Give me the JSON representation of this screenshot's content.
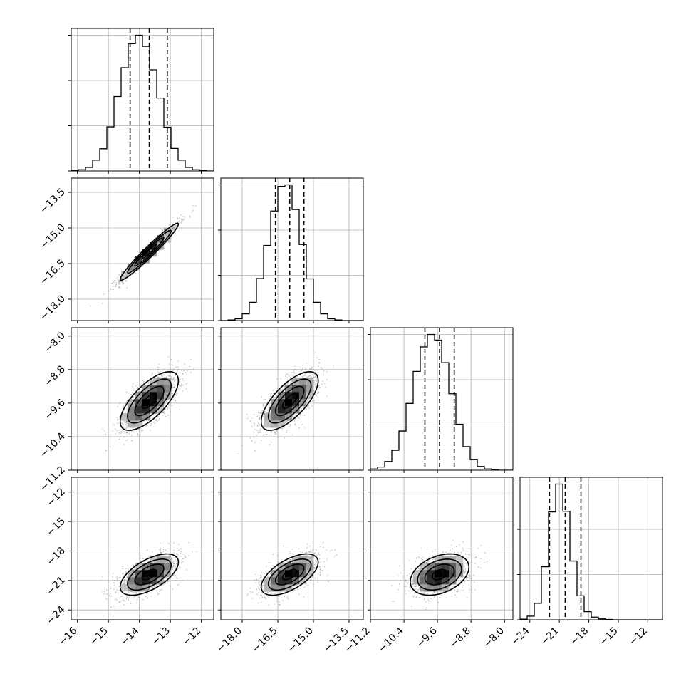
{
  "chart_data": {
    "type": "corner",
    "grid": true,
    "parameters": 4,
    "axes": [
      {
        "range": [
          -16.2,
          -11.6
        ],
        "ticks": [
          -16,
          -15,
          -14,
          -13,
          -12
        ],
        "tick_labels": [
          "−16",
          "−15",
          "−14",
          "−13",
          "−12"
        ]
      },
      {
        "range": [
          -18.9,
          -12.9
        ],
        "ticks": [
          -18.0,
          -16.5,
          -15.0,
          -13.5
        ],
        "tick_labels": [
          "−18.0",
          "−16.5",
          "−15.0",
          "−13.5"
        ]
      },
      {
        "range": [
          -11.2,
          -7.8
        ],
        "ticks": [
          -11.2,
          -10.4,
          -9.6,
          -8.8,
          -8.0
        ],
        "tick_labels": [
          "−11.2",
          "−10.4",
          "−9.6",
          "−8.8",
          "−8.0"
        ]
      },
      {
        "range": [
          -25.0,
          -10.5
        ],
        "ticks": [
          -24,
          -21,
          -18,
          -15,
          -12
        ],
        "tick_labels": [
          "−24",
          "−21",
          "−18",
          "−15",
          "−12"
        ]
      }
    ],
    "marginals": [
      {
        "param": 0,
        "quantiles": [
          -14.3,
          -13.68,
          -13.1
        ],
        "bin_edges": [
          -16.2,
          -15.97,
          -15.74,
          -15.51,
          -15.28,
          -15.05,
          -14.82,
          -14.59,
          -14.36,
          -14.13,
          -13.9,
          -13.67,
          -13.44,
          -13.21,
          -12.98,
          -12.75,
          -12.52,
          -12.29,
          -12.06,
          -11.83,
          -11.6
        ],
        "counts": [
          2,
          4,
          12,
          36,
          74,
          147,
          248,
          344,
          424,
          452,
          415,
          337,
          243,
          146,
          75,
          36,
          12,
          4,
          1,
          0
        ]
      },
      {
        "param": 1,
        "quantiles": [
          -16.6,
          -16.0,
          -15.4
        ],
        "bin_edges": [
          -18.9,
          -18.6,
          -18.3,
          -18.0,
          -17.7,
          -17.4,
          -17.1,
          -16.8,
          -16.5,
          -16.2,
          -15.9,
          -15.6,
          -15.3,
          -15.0,
          -14.7,
          -14.4,
          -14.1,
          -13.8,
          -13.5,
          -13.2,
          -12.9
        ],
        "counts": [
          0,
          2,
          6,
          22,
          60,
          138,
          247,
          360,
          441,
          446,
          365,
          250,
          137,
          60,
          22,
          6,
          2,
          0,
          0,
          0
        ]
      },
      {
        "param": 2,
        "quantiles": [
          -9.9,
          -9.55,
          -9.2
        ],
        "bin_edges": [
          -11.2,
          -11.03,
          -10.86,
          -10.69,
          -10.52,
          -10.35,
          -10.18,
          -10.01,
          -9.84,
          -9.67,
          -9.5,
          -9.33,
          -9.16,
          -8.99,
          -8.82,
          -8.65,
          -8.48,
          -8.31,
          -8.14,
          -7.97,
          -7.8
        ],
        "counts": [
          4,
          10,
          28,
          64,
          126,
          215,
          318,
          397,
          437,
          419,
          346,
          246,
          148,
          76,
          34,
          12,
          4,
          1,
          0,
          0
        ]
      },
      {
        "param": 3,
        "quantiles": [
          -22.0,
          -20.4,
          -18.8
        ],
        "bin_edges": [
          -25.0,
          -24.275,
          -23.55,
          -22.825,
          -22.1,
          -21.375,
          -20.65,
          -19.925,
          -19.2,
          -18.475,
          -17.75,
          -17.025,
          -16.3,
          -15.575,
          -14.85,
          -14.125,
          -13.4,
          -12.675,
          -11.95,
          -11.225,
          -10.5
        ],
        "counts": [
          2,
          12,
          55,
          177,
          360,
          453,
          362,
          196,
          80,
          27,
          9,
          3,
          1,
          0,
          0,
          0,
          0,
          0,
          0,
          0
        ]
      }
    ],
    "joint": [
      {
        "x": 0,
        "y": 1,
        "mean": [
          -13.68,
          -16.0
        ],
        "sd": [
          0.47,
          0.6
        ],
        "rho": 0.97
      },
      {
        "x": 0,
        "y": 2,
        "mean": [
          -13.68,
          -9.55
        ],
        "sd": [
          0.47,
          0.35
        ],
        "rho": 0.7
      },
      {
        "x": 1,
        "y": 2,
        "mean": [
          -16.0,
          -9.55
        ],
        "sd": [
          0.6,
          0.35
        ],
        "rho": 0.7
      },
      {
        "x": 0,
        "y": 3,
        "mean": [
          -13.68,
          -20.4
        ],
        "sd": [
          0.47,
          1.05
        ],
        "rho": 0.6
      },
      {
        "x": 1,
        "y": 3,
        "mean": [
          -16.0,
          -20.4
        ],
        "sd": [
          0.6,
          1.05
        ],
        "rho": 0.6
      },
      {
        "x": 2,
        "y": 3,
        "mean": [
          -9.55,
          -20.4
        ],
        "sd": [
          0.35,
          1.05
        ],
        "rho": 0.35
      }
    ]
  }
}
